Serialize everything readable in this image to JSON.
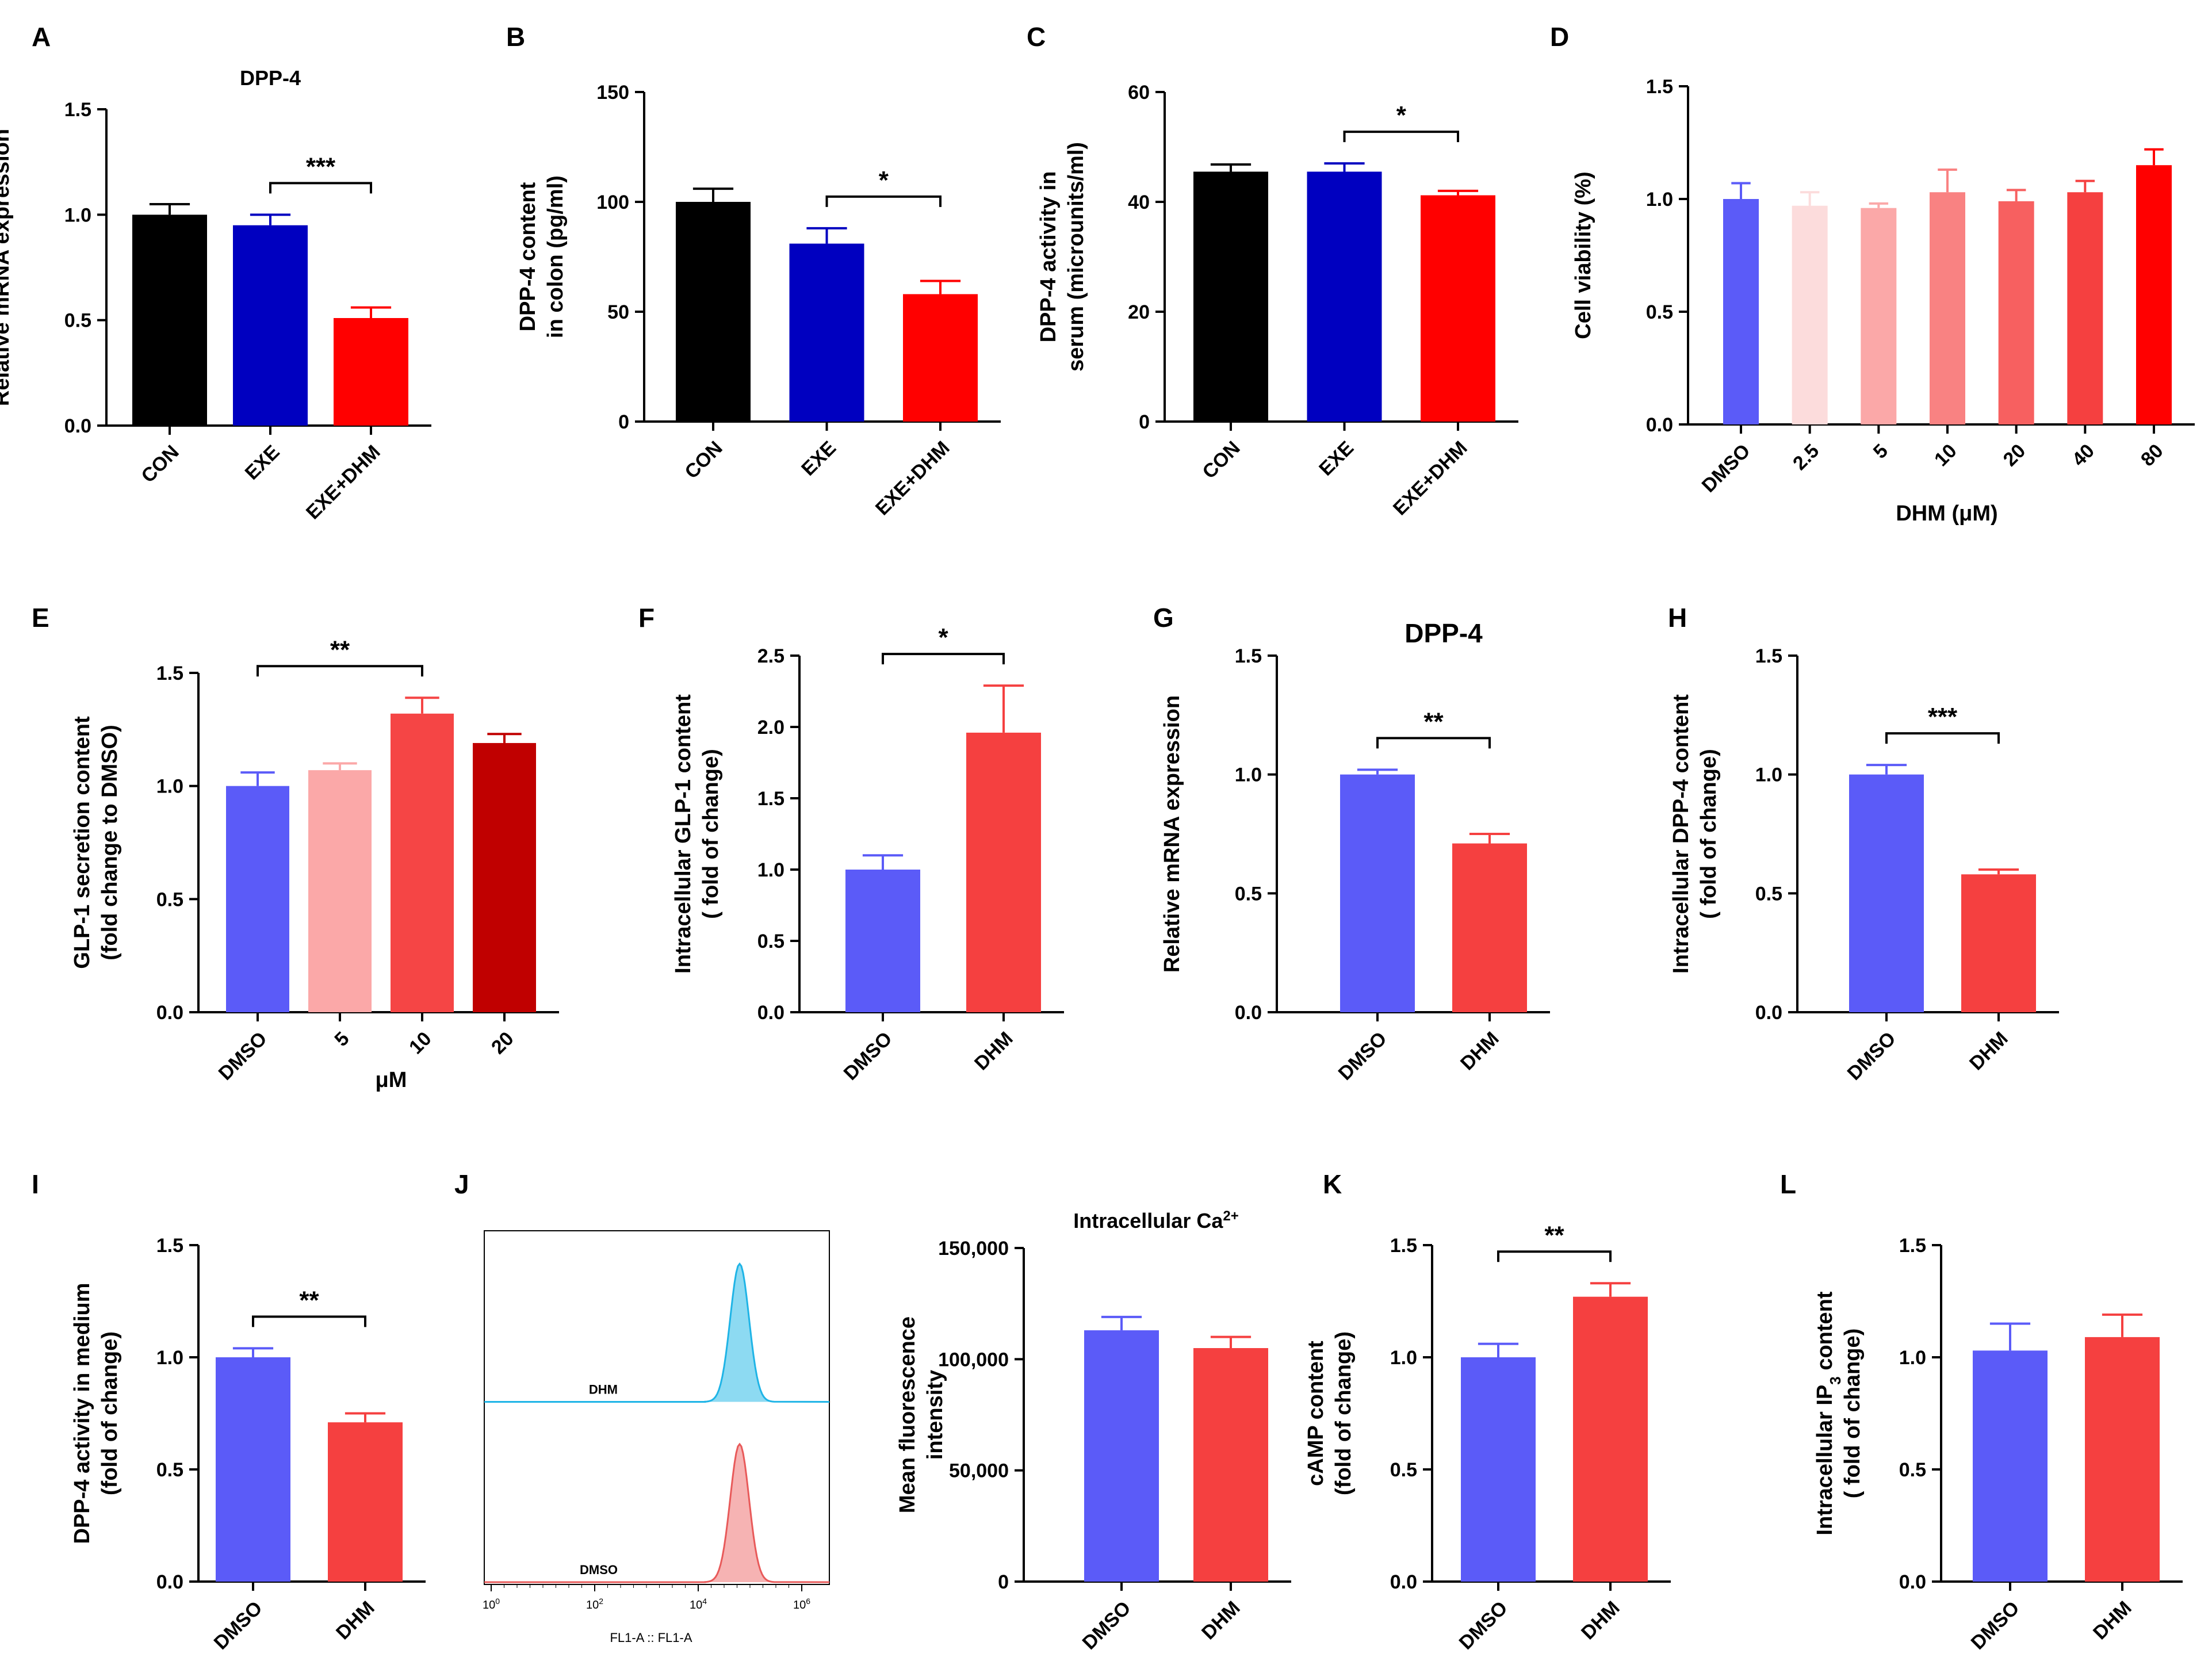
{
  "chart_data": [
    {
      "id": "A",
      "panel_label": "A",
      "type": "bar",
      "title": "DPP-4",
      "ylabel": [
        "Relative mRNA expression"
      ],
      "categories": [
        "CON",
        "EXE",
        "EXE+DHM"
      ],
      "values": [
        1.0,
        0.95,
        0.51
      ],
      "errors": [
        0.05,
        0.05,
        0.05
      ],
      "colors": [
        "#000000",
        "#0000c0",
        "#ff0000"
      ],
      "ylim": [
        0,
        1.5
      ],
      "yticks": [
        0.0,
        0.5,
        1.0,
        1.5
      ],
      "ytick_labels": [
        "0.0",
        "0.5",
        "1.0",
        "1.5"
      ],
      "xlabel": "",
      "significance": [
        {
          "from": 1,
          "to": 2,
          "label": "***"
        }
      ]
    },
    {
      "id": "B",
      "panel_label": "B",
      "type": "bar",
      "title": "",
      "ylabel": [
        "DPP-4 content",
        "in colon (pg/ml)"
      ],
      "categories": [
        "CON",
        "EXE",
        "EXE+DHM"
      ],
      "values": [
        100,
        81,
        58
      ],
      "errors": [
        6,
        7,
        6
      ],
      "colors": [
        "#000000",
        "#0000c0",
        "#ff0000"
      ],
      "ylim": [
        0,
        150
      ],
      "yticks": [
        0,
        50,
        100,
        150
      ],
      "ytick_labels": [
        "0",
        "50",
        "100",
        "150"
      ],
      "xlabel": "",
      "significance": [
        {
          "from": 1,
          "to": 2,
          "label": "*"
        }
      ]
    },
    {
      "id": "C",
      "panel_label": "C",
      "type": "bar",
      "title": "",
      "ylabel": [
        "DPP-4 activity in",
        "serum (microunits/ml)"
      ],
      "categories": [
        "CON",
        "EXE",
        "EXE+DHM"
      ],
      "values": [
        45.5,
        45.5,
        41.2
      ],
      "errors": [
        1.3,
        1.5,
        0.8
      ],
      "colors": [
        "#000000",
        "#0000c0",
        "#ff0000"
      ],
      "ylim": [
        0,
        60
      ],
      "yticks": [
        0,
        20,
        40,
        60
      ],
      "ytick_labels": [
        "0",
        "20",
        "40",
        "60"
      ],
      "xlabel": "",
      "significance": [
        {
          "from": 1,
          "to": 2,
          "label": "*"
        }
      ]
    },
    {
      "id": "D",
      "panel_label": "D",
      "type": "bar",
      "title": "",
      "ylabel": [
        "Cell viability (%)"
      ],
      "categories": [
        "DMSO",
        "2.5",
        "5",
        "10",
        "20",
        "40",
        "80"
      ],
      "values": [
        1.0,
        0.97,
        0.96,
        1.03,
        0.99,
        1.03,
        1.15
      ],
      "errors": [
        0.07,
        0.06,
        0.02,
        0.1,
        0.05,
        0.05,
        0.07
      ],
      "colors": [
        "#5b5bf8",
        "#fcdcdc",
        "#fba8a8",
        "#f98282",
        "#f76060",
        "#f54040",
        "#ff0000"
      ],
      "ylim": [
        0,
        1.5
      ],
      "yticks": [
        0.0,
        0.5,
        1.0,
        1.5
      ],
      "ytick_labels": [
        "0.0",
        "0.5",
        "1.0",
        "1.5"
      ],
      "xlabel": "DHM (μM)",
      "significance": []
    },
    {
      "id": "E",
      "panel_label": "E",
      "type": "bar",
      "title": "",
      "ylabel": [
        "GLP-1 secretion content",
        "(fold change to DMSO)"
      ],
      "categories": [
        "DMSO",
        "5",
        "10",
        "20"
      ],
      "values": [
        1.0,
        1.07,
        1.32,
        1.19
      ],
      "errors": [
        0.06,
        0.03,
        0.07,
        0.04
      ],
      "colors": [
        "#5b5bf8",
        "#fba8a8",
        "#f54545",
        "#c00000"
      ],
      "ylim": [
        0,
        1.5
      ],
      "yticks": [
        0.0,
        0.5,
        1.0,
        1.5
      ],
      "ytick_labels": [
        "0.0",
        "0.5",
        "1.0",
        "1.5"
      ],
      "xlabel": "μM",
      "significance": [
        {
          "from": 0,
          "to": 2,
          "label": "**"
        }
      ]
    },
    {
      "id": "F",
      "panel_label": "F",
      "type": "bar",
      "title": "",
      "ylabel": [
        "Intracellular GLP-1 content",
        "( fold of change)"
      ],
      "categories": [
        "DMSO",
        "DHM"
      ],
      "values": [
        1.0,
        1.96
      ],
      "errors": [
        0.1,
        0.33
      ],
      "colors": [
        "#5b5bf8",
        "#f54040"
      ],
      "ylim": [
        0,
        2.5
      ],
      "yticks": [
        0.0,
        0.5,
        1.0,
        1.5,
        2.0,
        2.5
      ],
      "ytick_labels": [
        "0.0",
        "0.5",
        "1.0",
        "1.5",
        "2.0",
        "2.5"
      ],
      "xlabel": "",
      "significance": [
        {
          "from": 0,
          "to": 1,
          "label": "*"
        }
      ]
    },
    {
      "id": "G",
      "panel_label": "G",
      "type": "bar",
      "title": "DPP-4",
      "ylabel": [
        "Relative mRNA expression"
      ],
      "categories": [
        "DMSO",
        "DHM"
      ],
      "values": [
        1.0,
        0.71
      ],
      "errors": [
        0.02,
        0.04
      ],
      "colors": [
        "#5b5bf8",
        "#f54040"
      ],
      "ylim": [
        0,
        1.5
      ],
      "yticks": [
        0.0,
        0.5,
        1.0,
        1.5
      ],
      "ytick_labels": [
        "0.0",
        "0.5",
        "1.0",
        "1.5"
      ],
      "xlabel": "",
      "significance": [
        {
          "from": 0,
          "to": 1,
          "label": "**"
        }
      ]
    },
    {
      "id": "H",
      "panel_label": "H",
      "type": "bar",
      "title": "",
      "ylabel": [
        "Intracellular DPP-4 content",
        "( fold of change)"
      ],
      "categories": [
        "DMSO",
        "DHM"
      ],
      "values": [
        1.0,
        0.58
      ],
      "errors": [
        0.04,
        0.02
      ],
      "colors": [
        "#5b5bf8",
        "#f54040"
      ],
      "ylim": [
        0,
        1.5
      ],
      "yticks": [
        0.0,
        0.5,
        1.0,
        1.5
      ],
      "ytick_labels": [
        "0.0",
        "0.5",
        "1.0",
        "1.5"
      ],
      "xlabel": "",
      "significance": [
        {
          "from": 0,
          "to": 1,
          "label": "***"
        }
      ]
    },
    {
      "id": "I",
      "panel_label": "I",
      "type": "bar",
      "title": "",
      "ylabel": [
        "DPP-4 activity in medium",
        "(fold of change)"
      ],
      "categories": [
        "DMSO",
        "DHM"
      ],
      "values": [
        1.0,
        0.71
      ],
      "errors": [
        0.04,
        0.04
      ],
      "colors": [
        "#5b5bf8",
        "#f54040"
      ],
      "ylim": [
        0,
        1.5
      ],
      "yticks": [
        0.0,
        0.5,
        1.0,
        1.5
      ],
      "ytick_labels": [
        "0.0",
        "0.5",
        "1.0",
        "1.5"
      ],
      "xlabel": "",
      "significance": [
        {
          "from": 0,
          "to": 1,
          "label": "**"
        }
      ]
    },
    {
      "id": "J2",
      "panel_label": "",
      "type": "bar",
      "title": "Intracellular Ca",
      "title_sup": "2+",
      "ylabel": [
        "Mean fluorescence",
        "intensity"
      ],
      "categories": [
        "DMSO",
        "DHM"
      ],
      "values": [
        113000,
        105000
      ],
      "errors": [
        6000,
        5000
      ],
      "colors": [
        "#5b5bf8",
        "#f54040"
      ],
      "ylim": [
        0,
        150000
      ],
      "yticks": [
        0,
        50000,
        100000,
        150000
      ],
      "ytick_labels": [
        "0",
        "50,000",
        "100,000",
        "150,000"
      ],
      "xlabel": "",
      "significance": []
    },
    {
      "id": "K",
      "panel_label": "K",
      "type": "bar",
      "title": "",
      "ylabel": [
        "cAMP content",
        "(fold of change)"
      ],
      "categories": [
        "DMSO",
        "DHM"
      ],
      "values": [
        1.0,
        1.27
      ],
      "errors": [
        0.06,
        0.06
      ],
      "colors": [
        "#5b5bf8",
        "#f54040"
      ],
      "ylim": [
        0,
        1.5
      ],
      "yticks": [
        0.0,
        0.5,
        1.0,
        1.5
      ],
      "ytick_labels": [
        "0.0",
        "0.5",
        "1.0",
        "1.5"
      ],
      "xlabel": "",
      "significance": [
        {
          "from": 0,
          "to": 1,
          "label": "**"
        }
      ]
    },
    {
      "id": "L",
      "panel_label": "L",
      "type": "bar",
      "title": "",
      "ylabel_parts": [
        "Intracellular IP",
        "3",
        " content"
      ],
      "ylabel2": "( fold of change)",
      "categories": [
        "DMSO",
        "DHM"
      ],
      "values": [
        1.03,
        1.09
      ],
      "errors": [
        0.12,
        0.1
      ],
      "colors": [
        "#5b5bf8",
        "#f54040"
      ],
      "ylim": [
        0,
        1.5
      ],
      "yticks": [
        0.0,
        0.5,
        1.0,
        1.5
      ],
      "ytick_labels": [
        "0.0",
        "0.5",
        "1.0",
        "1.5"
      ],
      "xlabel": "",
      "significance": []
    },
    {
      "id": "J1",
      "panel_label": "J",
      "type": "histogram",
      "series": [
        {
          "name": "DHM",
          "peak_log10": 4.8,
          "color": "#1fb4e6",
          "fill": "#8ddaf2"
        },
        {
          "name": "DMSO",
          "peak_log10": 4.8,
          "color": "#e85a5a",
          "fill": "#f6b3b3"
        }
      ],
      "x_axis_label": "FL1-A :: FL1-A",
      "xticks_base": "10",
      "xticks_exp": [
        "0",
        "2",
        "4",
        "6"
      ]
    }
  ]
}
